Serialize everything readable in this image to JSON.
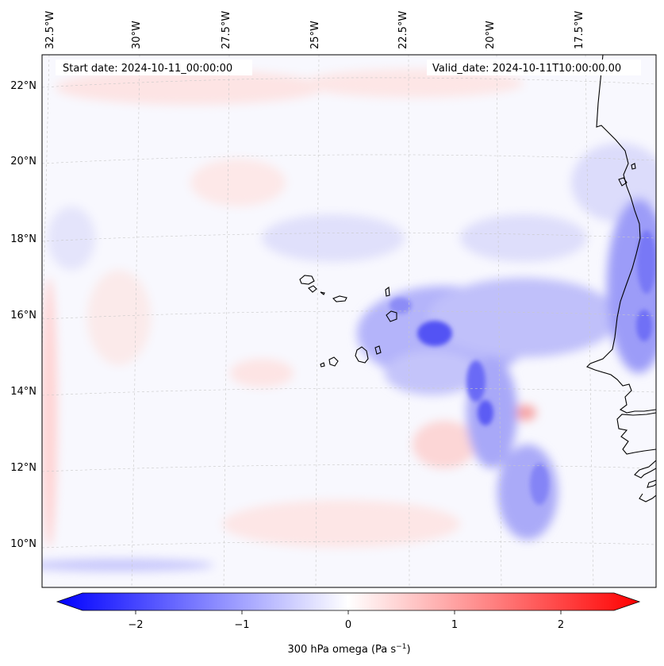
{
  "map": {
    "projection": "lambert-conformal",
    "lon_labels": [
      "32.5°W",
      "30°W",
      "27.5°W",
      "25°W",
      "22.5°W",
      "20°W",
      "17.5°W"
    ],
    "lat_labels": [
      "22°N",
      "20°N",
      "18°N",
      "16°N",
      "14°N",
      "12°N",
      "10°N"
    ],
    "gridlines": "dashed light gray",
    "start_date": "Start date: 2024-10-11_00:00:00",
    "valid_date": "Valid_date: 2024-10-11T10:00:00.00",
    "field": "300 hPa omega",
    "features": [
      "Cabo Verde islands",
      "West African coastline (Mauritania, Senegal, Gambia, Guinea-Bissau)"
    ],
    "pattern": "band of upward motion (negative omega, blue) running from the Cabo Verde area south-eastward toward 10°N 18°W; weak red (positive) patches scattered elsewhere"
  },
  "colorbar": {
    "ticks": [
      "−2",
      "−1",
      "0",
      "1",
      "2"
    ],
    "tick_values": [
      -2,
      -1,
      0,
      1,
      2
    ],
    "range": [
      -2.5,
      2.5
    ],
    "extend": "both",
    "cmap": "bwr",
    "colors": {
      "low": "#0000ff",
      "mid": "#ffffff",
      "high": "#ff0000"
    },
    "label_main": "300 hPa omega (Pa s",
    "label_exp": "−1",
    "label_end": ")"
  }
}
